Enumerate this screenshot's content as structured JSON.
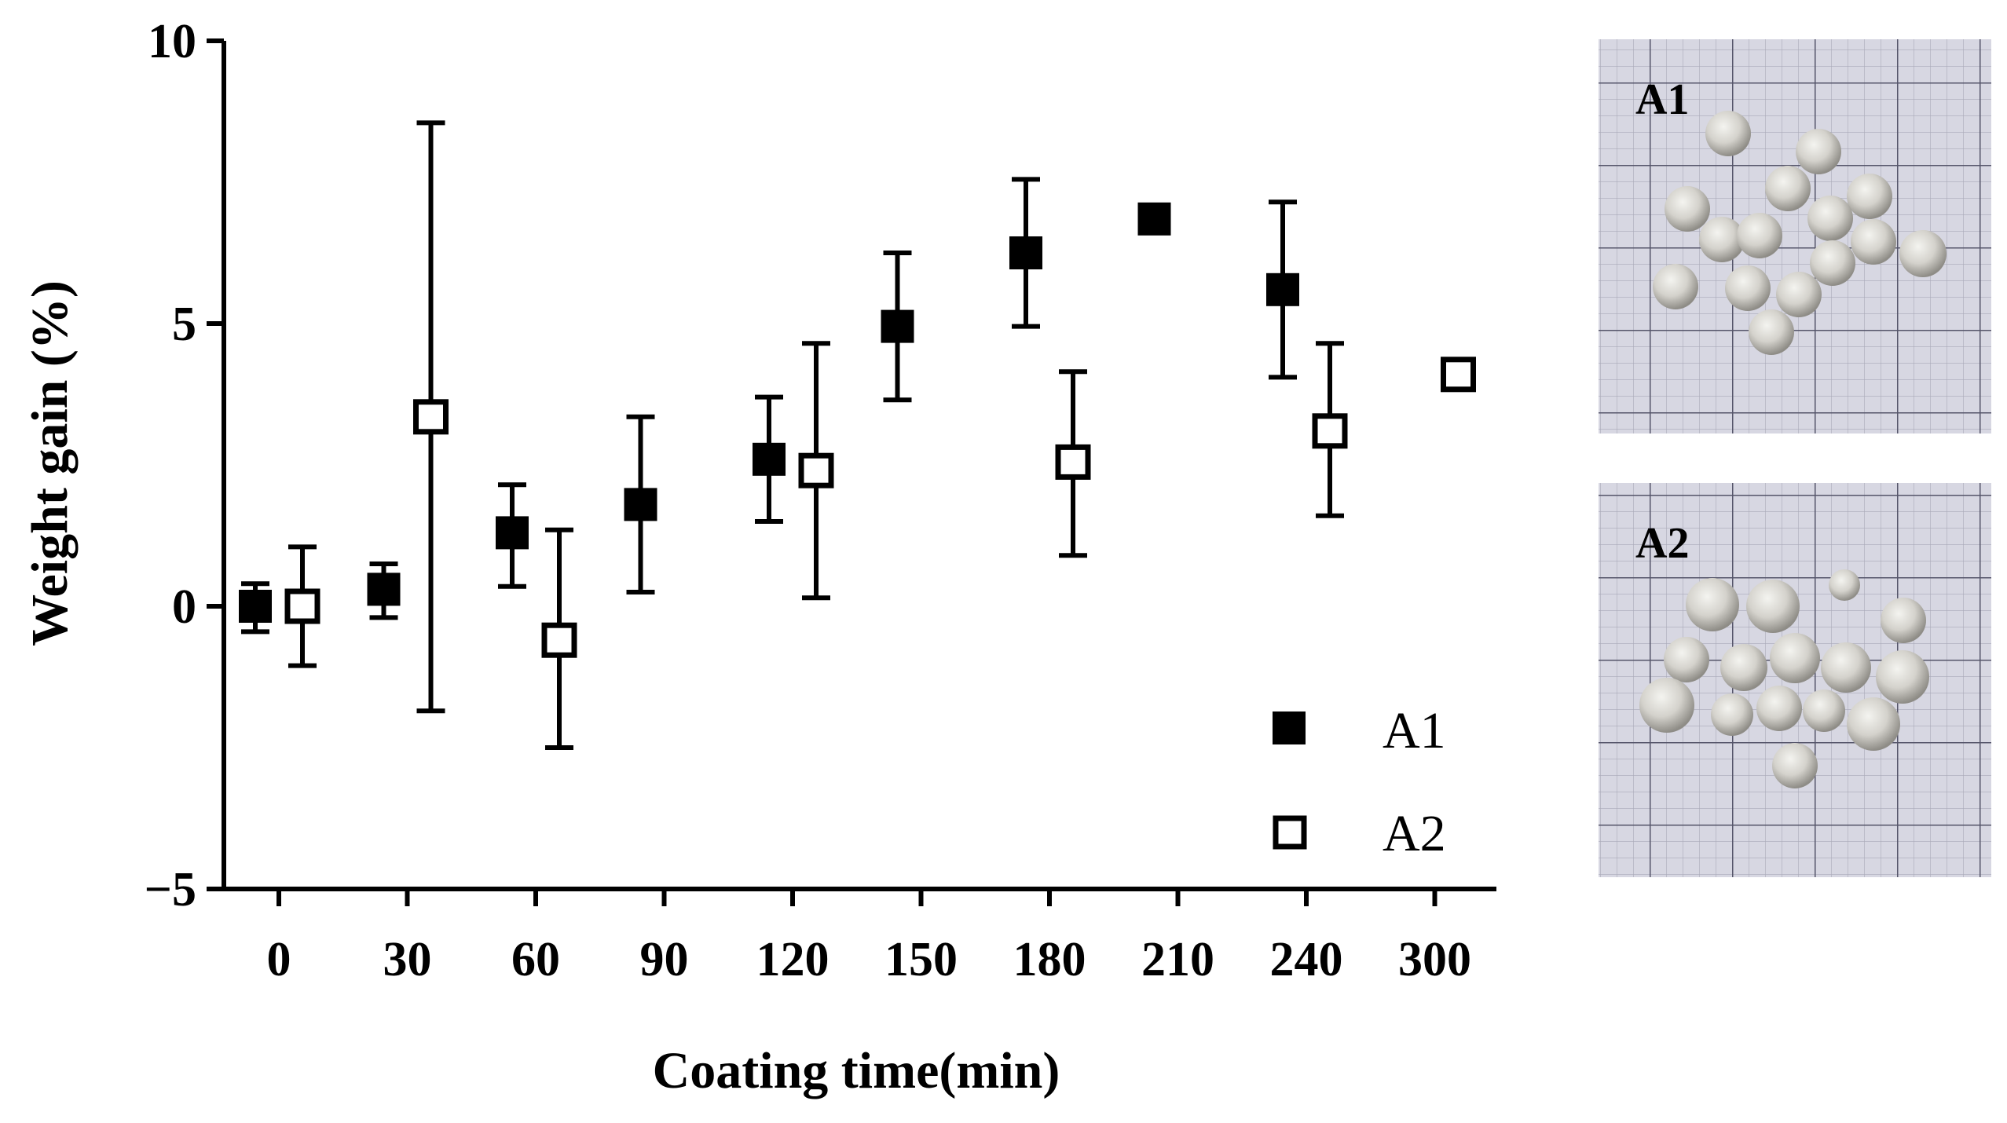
{
  "chart_data": {
    "type": "scatter",
    "xlabel": "Coating time(min)",
    "ylabel": "Weight gain (%)",
    "ylim": [
      -5,
      10
    ],
    "yticks": [
      -5,
      0,
      5,
      10
    ],
    "ytick_labels": [
      "−5",
      "0",
      "5",
      "10"
    ],
    "x_categories": [
      "0",
      "30",
      "60",
      "90",
      "120",
      "150",
      "180",
      "210",
      "240",
      "300"
    ],
    "series": [
      {
        "name": "A1",
        "marker": "filled-square",
        "color": "#000000",
        "points": [
          {
            "x": "0",
            "y": 0.0,
            "err_low": -0.45,
            "err_high": 0.4
          },
          {
            "x": "30",
            "y": 0.3,
            "err_low": -0.2,
            "err_high": 0.75
          },
          {
            "x": "60",
            "y": 1.3,
            "err_low": 0.35,
            "err_high": 2.15
          },
          {
            "x": "90",
            "y": 1.8,
            "err_low": 0.25,
            "err_high": 3.35
          },
          {
            "x": "120",
            "y": 2.6,
            "err_low": 1.5,
            "err_high": 3.7
          },
          {
            "x": "150",
            "y": 4.95,
            "err_low": 3.65,
            "err_high": 6.25
          },
          {
            "x": "180",
            "y": 6.25,
            "err_low": 4.95,
            "err_high": 7.55
          },
          {
            "x": "210",
            "y": 6.85,
            "err_low": 6.85,
            "err_high": 6.85
          },
          {
            "x": "240",
            "y": 5.6,
            "err_low": 4.05,
            "err_high": 7.15
          }
        ]
      },
      {
        "name": "A2",
        "marker": "open-square",
        "color": "#000000",
        "points": [
          {
            "x": "0",
            "y": 0.0,
            "err_low": -1.05,
            "err_high": 1.05
          },
          {
            "x": "30",
            "y": 3.35,
            "err_low": -1.85,
            "err_high": 8.55
          },
          {
            "x": "60",
            "y": -0.6,
            "err_low": -2.5,
            "err_high": 1.35
          },
          {
            "x": "120",
            "y": 2.4,
            "err_low": 0.15,
            "err_high": 4.65
          },
          {
            "x": "180",
            "y": 2.55,
            "err_low": 0.9,
            "err_high": 4.15
          },
          {
            "x": "240",
            "y": 3.1,
            "err_low": 1.6,
            "err_high": 4.65
          },
          {
            "x": "300",
            "y": 4.1,
            "err_low": 4.1,
            "err_high": 4.1
          }
        ]
      }
    ],
    "legend": {
      "position": "bottom-right",
      "entries": [
        "A1",
        "A2"
      ]
    },
    "grid": false
  },
  "photos": [
    {
      "label": "A1",
      "description_icon": "beads-on-grid-photo"
    },
    {
      "label": "A2",
      "description_icon": "beads-on-grid-photo"
    }
  ]
}
